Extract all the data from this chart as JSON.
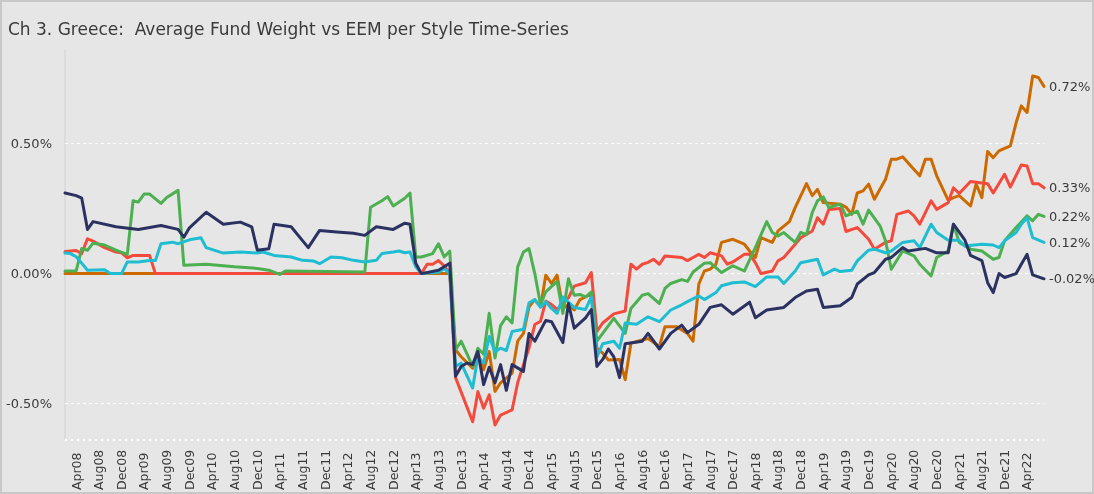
{
  "chart_data": {
    "type": "line",
    "title": "Ch 3. Greece:  Average Fund Weight vs EEM per Style Time-Series",
    "xlim": [
      "2008-02",
      "2022-07"
    ],
    "xticks": [
      {
        "value": "2008-04",
        "label": "Apr08"
      },
      {
        "value": "2008-08",
        "label": "Aug08"
      },
      {
        "value": "2008-12",
        "label": "Dec08"
      },
      {
        "value": "2009-04",
        "label": "Apr09"
      },
      {
        "value": "2009-08",
        "label": "Aug09"
      },
      {
        "value": "2009-12",
        "label": "Dec09"
      },
      {
        "value": "2010-04",
        "label": "Apr10"
      },
      {
        "value": "2010-08",
        "label": "Aug10"
      },
      {
        "value": "2010-12",
        "label": "Dec10"
      },
      {
        "value": "2011-04",
        "label": "Apr11"
      },
      {
        "value": "2011-08",
        "label": "Aug11"
      },
      {
        "value": "2011-12",
        "label": "Dec11"
      },
      {
        "value": "2012-04",
        "label": "Apr12"
      },
      {
        "value": "2012-08",
        "label": "Aug12"
      },
      {
        "value": "2012-12",
        "label": "Dec12"
      },
      {
        "value": "2013-04",
        "label": "Apr13"
      },
      {
        "value": "2013-08",
        "label": "Aug13"
      },
      {
        "value": "2013-12",
        "label": "Dec13"
      },
      {
        "value": "2014-04",
        "label": "Apr14"
      },
      {
        "value": "2014-08",
        "label": "Aug14"
      },
      {
        "value": "2014-12",
        "label": "Dec14"
      },
      {
        "value": "2015-04",
        "label": "Apr15"
      },
      {
        "value": "2015-08",
        "label": "Aug15"
      },
      {
        "value": "2015-12",
        "label": "Dec15"
      },
      {
        "value": "2016-04",
        "label": "Apr16"
      },
      {
        "value": "2016-08",
        "label": "Aug16"
      },
      {
        "value": "2016-12",
        "label": "Dec16"
      },
      {
        "value": "2017-04",
        "label": "Apr17"
      },
      {
        "value": "2017-08",
        "label": "Aug17"
      },
      {
        "value": "2017-12",
        "label": "Dec17"
      },
      {
        "value": "2018-04",
        "label": "Apr18"
      },
      {
        "value": "2018-08",
        "label": "Aug18"
      },
      {
        "value": "2018-12",
        "label": "Dec18"
      },
      {
        "value": "2019-04",
        "label": "Apr19"
      },
      {
        "value": "2019-08",
        "label": "Aug19"
      },
      {
        "value": "2019-12",
        "label": "Dec19"
      },
      {
        "value": "2020-04",
        "label": "Apr20"
      },
      {
        "value": "2020-08",
        "label": "Aug20"
      },
      {
        "value": "2020-12",
        "label": "Dec20"
      },
      {
        "value": "2021-04",
        "label": "Apr21"
      },
      {
        "value": "2021-08",
        "label": "Aug21"
      },
      {
        "value": "2021-12",
        "label": "Dec21"
      },
      {
        "value": "2022-04",
        "label": "Apr22"
      }
    ],
    "ylim": [
      -0.64,
      0.86
    ],
    "yticks": [
      {
        "value": -0.5,
        "label": "-0.50%"
      },
      {
        "value": 0,
        "label": "0.00%"
      },
      {
        "value": 0.5,
        "label": "0.50%"
      }
    ],
    "grid": "y",
    "series": [
      {
        "color": "#cc6a00",
        "x": [
          "2008-02",
          "2013-10",
          "2013-11",
          "2013-12",
          "2014-02",
          "2014-03",
          "2014-04",
          "2014-05",
          "2014-06",
          "2014-07",
          "2014-09",
          "2014-10",
          "2014-11",
          "2014-12",
          "2015-01",
          "2015-02",
          "2015-03",
          "2015-04",
          "2015-05",
          "2015-06",
          "2015-07",
          "2015-08",
          "2015-09",
          "2015-10",
          "2015-11",
          "2015-12",
          "2016-01",
          "2016-02",
          "2016-04",
          "2016-05",
          "2016-06",
          "2016-08",
          "2016-09",
          "2016-11",
          "2016-12",
          "2017-02",
          "2017-04",
          "2017-05",
          "2017-06",
          "2017-07",
          "2017-08",
          "2017-09",
          "2017-10",
          "2017-12",
          "2018-02",
          "2018-03",
          "2018-04",
          "2018-05",
          "2018-07",
          "2018-08",
          "2018-10",
          "2018-11",
          "2019-01",
          "2019-02",
          "2019-03",
          "2019-04",
          "2019-07",
          "2019-08",
          "2019-09",
          "2019-10",
          "2019-11",
          "2019-12",
          "2020-01",
          "2020-03",
          "2020-04",
          "2020-05",
          "2020-06",
          "2020-08",
          "2020-09",
          "2020-10",
          "2020-11",
          "2020-12",
          "2021-02",
          "2021-03",
          "2021-04",
          "2021-06",
          "2021-07",
          "2021-08",
          "2021-09",
          "2021-10",
          "2021-11",
          "2022-01",
          "2022-02",
          "2022-03",
          "2022-04",
          "2022-05",
          "2022-06",
          "2022-07"
        ],
        "values": [
          0.0,
          0.0,
          -0.293,
          -0.32,
          -0.364,
          -0.306,
          -0.37,
          -0.3,
          -0.453,
          -0.42,
          -0.383,
          -0.26,
          -0.23,
          -0.128,
          -0.1,
          -0.128,
          -0.006,
          -0.038,
          -0.006,
          -0.134,
          -0.12,
          -0.14,
          -0.1,
          -0.09,
          -0.077,
          -0.287,
          -0.306,
          -0.332,
          -0.33,
          -0.408,
          -0.268,
          -0.255,
          -0.25,
          -0.28,
          -0.204,
          -0.204,
          -0.23,
          -0.26,
          -0.04,
          0.01,
          0.017,
          0.036,
          0.12,
          0.132,
          0.113,
          0.087,
          0.062,
          0.138,
          0.12,
          0.164,
          0.2,
          0.254,
          0.346,
          0.3,
          0.324,
          0.273,
          0.267,
          0.256,
          0.228,
          0.31,
          0.318,
          0.344,
          0.286,
          0.363,
          0.44,
          0.44,
          0.449,
          0.4,
          0.376,
          0.44,
          0.44,
          0.376,
          0.282,
          0.292,
          0.3,
          0.26,
          0.344,
          0.292,
          0.47,
          0.446,
          0.472,
          0.491,
          0.58,
          0.645,
          0.62,
          0.76,
          0.754,
          0.72
        ]
      },
      {
        "color": "#f44a3c",
        "x": [
          "2008-02",
          "2008-04",
          "2008-05",
          "2008-06",
          "2008-07",
          "2008-09",
          "2008-11",
          "2008-12",
          "2009-01",
          "2009-02",
          "2009-05",
          "2009-06",
          "2013-05",
          "2013-06",
          "2013-07",
          "2013-08",
          "2013-09",
          "2013-10",
          "2013-11",
          "2014-02",
          "2014-03",
          "2014-04",
          "2014-05",
          "2014-06",
          "2014-07",
          "2014-09",
          "2014-10",
          "2014-11",
          "2014-12",
          "2015-01",
          "2015-02",
          "2015-03",
          "2015-04",
          "2015-05",
          "2015-07",
          "2015-08",
          "2015-10",
          "2015-11",
          "2015-12",
          "2016-01",
          "2016-03",
          "2016-05",
          "2016-06",
          "2016-07",
          "2016-08",
          "2016-09",
          "2016-10",
          "2016-11",
          "2016-12",
          "2017-03",
          "2017-04",
          "2017-05",
          "2017-06",
          "2017-07",
          "2017-08",
          "2017-10",
          "2017-11",
          "2017-12",
          "2018-02",
          "2018-03",
          "2018-04",
          "2018-05",
          "2018-07",
          "2018-08",
          "2018-09",
          "2018-11",
          "2018-12",
          "2019-02",
          "2019-03",
          "2019-04",
          "2019-05",
          "2019-07",
          "2019-08",
          "2019-10",
          "2019-12",
          "2020-01",
          "2020-03",
          "2020-04",
          "2020-05",
          "2020-07",
          "2020-08",
          "2020-09",
          "2020-11",
          "2020-12",
          "2021-02",
          "2021-03",
          "2021-04",
          "2021-06",
          "2021-09",
          "2021-10",
          "2021-12",
          "2022-01",
          "2022-03",
          "2022-04",
          "2022-05",
          "2022-06",
          "2022-07"
        ],
        "values": [
          0.085,
          0.089,
          0.077,
          0.134,
          0.125,
          0.1,
          0.083,
          0.08,
          0.061,
          0.07,
          0.07,
          0.0,
          0.0,
          0.036,
          0.036,
          0.05,
          0.03,
          0.0,
          -0.4,
          -0.57,
          -0.454,
          -0.518,
          -0.466,
          -0.582,
          -0.544,
          -0.524,
          -0.42,
          -0.35,
          -0.286,
          -0.196,
          -0.183,
          -0.106,
          -0.119,
          -0.138,
          -0.093,
          -0.048,
          -0.035,
          0.004,
          -0.222,
          -0.19,
          -0.155,
          -0.144,
          0.036,
          0.017,
          0.036,
          0.043,
          0.055,
          0.036,
          0.068,
          0.062,
          0.05,
          0.062,
          0.074,
          0.062,
          0.08,
          0.068,
          0.036,
          0.045,
          0.074,
          0.074,
          0.042,
          0.0,
          0.01,
          0.049,
          0.062,
          0.113,
          0.138,
          0.164,
          0.215,
          0.19,
          0.247,
          0.25,
          0.162,
          0.177,
          0.132,
          0.094,
          0.12,
          0.126,
          0.228,
          0.241,
          0.222,
          0.19,
          0.28,
          0.247,
          0.273,
          0.33,
          0.308,
          0.354,
          0.346,
          0.31,
          0.382,
          0.333,
          0.418,
          0.414,
          0.346,
          0.346,
          0.33
        ]
      },
      {
        "color": "#4caf50",
        "x": [
          "2008-02",
          "2008-04",
          "2008-05",
          "2008-06",
          "2008-07",
          "2008-09",
          "2008-11",
          "2009-01",
          "2009-02",
          "2009-03",
          "2009-04",
          "2009-05",
          "2009-07",
          "2009-08",
          "2009-10",
          "2009-11",
          "2010-03",
          "2010-08",
          "2010-12",
          "2011-02",
          "2011-04",
          "2011-05",
          "2012-07",
          "2012-08",
          "2012-10",
          "2012-11",
          "2012-12",
          "2013-02",
          "2013-03",
          "2013-04",
          "2013-05",
          "2013-07",
          "2013-08",
          "2013-09",
          "2013-10",
          "2013-11",
          "2013-12",
          "2014-02",
          "2014-03",
          "2014-04",
          "2014-05",
          "2014-06",
          "2014-07",
          "2014-08",
          "2014-09",
          "2014-10",
          "2014-11",
          "2014-12",
          "2015-01",
          "2015-02",
          "2015-03",
          "2015-05",
          "2015-06",
          "2015-07",
          "2015-08",
          "2015-09",
          "2015-10",
          "2015-11",
          "2015-12",
          "2016-01",
          "2016-03",
          "2016-05",
          "2016-06",
          "2016-08",
          "2016-09",
          "2016-11",
          "2016-12",
          "2017-01",
          "2017-03",
          "2017-04",
          "2017-05",
          "2017-07",
          "2017-08",
          "2017-10",
          "2017-12",
          "2018-02",
          "2018-04",
          "2018-06",
          "2018-07",
          "2018-08",
          "2018-09",
          "2018-11",
          "2018-12",
          "2019-01",
          "2019-02",
          "2019-03",
          "2019-04",
          "2019-05",
          "2019-07",
          "2019-08",
          "2019-10",
          "2019-11",
          "2019-12",
          "2020-02",
          "2020-03",
          "2020-04",
          "2020-06",
          "2020-08",
          "2020-09",
          "2020-11",
          "2020-12",
          "2021-02",
          "2021-03",
          "2021-04",
          "2021-06",
          "2021-08",
          "2021-10",
          "2021-11",
          "2021-12",
          "2022-02",
          "2022-04",
          "2022-05",
          "2022-06",
          "2022-07"
        ],
        "values": [
          0.01,
          0.01,
          0.096,
          0.09,
          0.117,
          0.11,
          0.09,
          0.074,
          0.28,
          0.275,
          0.306,
          0.306,
          0.27,
          0.293,
          0.32,
          0.032,
          0.036,
          0.026,
          0.02,
          0.013,
          -0.003,
          0.01,
          0.006,
          0.255,
          0.28,
          0.296,
          0.26,
          0.29,
          0.31,
          0.064,
          0.064,
          0.077,
          0.115,
          0.064,
          0.087,
          -0.293,
          -0.26,
          -0.357,
          -0.287,
          -0.31,
          -0.153,
          -0.325,
          -0.2,
          -0.166,
          -0.19,
          0.026,
          0.083,
          0.096,
          0.0,
          -0.12,
          -0.07,
          -0.03,
          -0.153,
          -0.02,
          -0.083,
          -0.08,
          -0.09,
          -0.07,
          -0.26,
          -0.23,
          -0.172,
          -0.23,
          -0.134,
          -0.083,
          -0.077,
          -0.115,
          -0.057,
          -0.038,
          -0.023,
          -0.03,
          0.006,
          0.04,
          0.042,
          0.004,
          0.03,
          0.01,
          0.1,
          0.2,
          0.158,
          0.145,
          0.158,
          0.12,
          0.158,
          0.15,
          0.235,
          0.28,
          0.295,
          0.254,
          0.267,
          0.222,
          0.24,
          0.19,
          0.244,
          0.183,
          0.126,
          0.017,
          0.087,
          0.068,
          0.036,
          -0.009,
          0.062,
          0.087,
          0.19,
          0.12,
          0.094,
          0.087,
          0.055,
          0.062,
          0.126,
          0.177,
          0.222,
          0.203,
          0.228,
          0.22
        ]
      },
      {
        "color": "#1fbdd2",
        "x": [
          "2008-02",
          "2008-03",
          "2008-04",
          "2008-05",
          "2008-06",
          "2008-09",
          "2008-10",
          "2008-12",
          "2009-01",
          "2009-03",
          "2009-05",
          "2009-06",
          "2009-07",
          "2009-09",
          "2009-10",
          "2009-12",
          "2010-02",
          "2010-03",
          "2010-06",
          "2010-09",
          "2010-12",
          "2011-01",
          "2011-03",
          "2011-06",
          "2011-08",
          "2011-10",
          "2011-11",
          "2012-01",
          "2012-03",
          "2012-05",
          "2012-07",
          "2012-09",
          "2012-10",
          "2012-12",
          "2013-01",
          "2013-02",
          "2013-03",
          "2013-04",
          "2013-05",
          "2013-08",
          "2013-09",
          "2013-10",
          "2013-11",
          "2013-12",
          "2014-02",
          "2014-03",
          "2014-04",
          "2014-05",
          "2014-06",
          "2014-07",
          "2014-08",
          "2014-09",
          "2014-11",
          "2014-12",
          "2015-01",
          "2015-02",
          "2015-03",
          "2015-04",
          "2015-05",
          "2015-06",
          "2015-08",
          "2015-10",
          "2015-11",
          "2015-12",
          "2016-01",
          "2016-03",
          "2016-04",
          "2016-05",
          "2016-07",
          "2016-09",
          "2016-11",
          "2017-01",
          "2017-03",
          "2017-04",
          "2017-06",
          "2017-07",
          "2017-09",
          "2017-10",
          "2017-12",
          "2018-02",
          "2018-04",
          "2018-06",
          "2018-08",
          "2018-09",
          "2018-11",
          "2018-12",
          "2019-03",
          "2019-04",
          "2019-06",
          "2019-07",
          "2019-09",
          "2019-10",
          "2019-12",
          "2020-01",
          "2020-03",
          "2020-04",
          "2020-06",
          "2020-08",
          "2020-09",
          "2020-11",
          "2020-12",
          "2021-02",
          "2021-04",
          "2021-05",
          "2021-08",
          "2021-10",
          "2021-11",
          "2021-12",
          "2022-02",
          "2022-03",
          "2022-04",
          "2022-05",
          "2022-07"
        ],
        "values": [
          0.079,
          0.077,
          0.065,
          0.04,
          0.013,
          0.015,
          0.0,
          0.0,
          0.045,
          0.045,
          0.05,
          0.05,
          0.115,
          0.121,
          0.115,
          0.13,
          0.138,
          0.1,
          0.079,
          0.083,
          0.079,
          0.083,
          0.07,
          0.064,
          0.051,
          0.048,
          0.038,
          0.064,
          0.061,
          0.051,
          0.045,
          0.051,
          0.077,
          0.083,
          0.087,
          0.08,
          0.083,
          0.026,
          0.0,
          0.005,
          0.019,
          0.0,
          -0.357,
          -0.344,
          -0.44,
          -0.32,
          -0.344,
          -0.242,
          -0.3,
          -0.287,
          -0.296,
          -0.223,
          -0.214,
          -0.112,
          -0.1,
          -0.13,
          -0.108,
          -0.134,
          -0.153,
          -0.09,
          -0.13,
          -0.138,
          -0.09,
          -0.32,
          -0.27,
          -0.26,
          -0.287,
          -0.19,
          -0.195,
          -0.166,
          -0.185,
          -0.14,
          -0.12,
          -0.108,
          -0.086,
          -0.1,
          -0.073,
          -0.047,
          -0.035,
          -0.032,
          -0.05,
          -0.013,
          -0.013,
          -0.038,
          0.01,
          0.042,
          0.055,
          -0.005,
          0.017,
          0.008,
          0.013,
          0.049,
          0.09,
          0.094,
          0.08,
          0.087,
          0.12,
          0.126,
          0.1,
          0.19,
          0.158,
          0.128,
          0.128,
          0.106,
          0.113,
          0.11,
          0.1,
          0.126,
          0.158,
          0.19,
          0.215,
          0.138,
          0.12
        ]
      },
      {
        "color": "#2b3160",
        "x": [
          "2008-02",
          "2008-04",
          "2008-05",
          "2008-06",
          "2008-07",
          "2008-11",
          "2009-03",
          "2009-07",
          "2009-10",
          "2009-11",
          "2009-12",
          "2010-03",
          "2010-06",
          "2010-09",
          "2010-11",
          "2010-12",
          "2011-02",
          "2011-03",
          "2011-06",
          "2011-09",
          "2011-11",
          "2012-02",
          "2012-05",
          "2012-07",
          "2012-09",
          "2012-12",
          "2013-02",
          "2013-03",
          "2013-04",
          "2013-05",
          "2013-08",
          "2013-10",
          "2013-11",
          "2013-12",
          "2014-01",
          "2014-02",
          "2014-03",
          "2014-04",
          "2014-05",
          "2014-06",
          "2014-07",
          "2014-08",
          "2014-09",
          "2014-11",
          "2014-12",
          "2015-01",
          "2015-03",
          "2015-04",
          "2015-06",
          "2015-07",
          "2015-08",
          "2015-10",
          "2015-11",
          "2015-12",
          "2016-01",
          "2016-02",
          "2016-03",
          "2016-04",
          "2016-05",
          "2016-08",
          "2016-09",
          "2016-11",
          "2017-01",
          "2017-03",
          "2017-04",
          "2017-06",
          "2017-08",
          "2017-10",
          "2017-12",
          "2018-03",
          "2018-04",
          "2018-06",
          "2018-09",
          "2018-11",
          "2019-01",
          "2019-03",
          "2019-04",
          "2019-07",
          "2019-09",
          "2019-10",
          "2019-12",
          "2020-01",
          "2020-03",
          "2020-04",
          "2020-06",
          "2020-07",
          "2020-10",
          "2020-12",
          "2021-02",
          "2021-03",
          "2021-05",
          "2021-06",
          "2021-08",
          "2021-09",
          "2021-10",
          "2021-11",
          "2021-12",
          "2022-02",
          "2022-03",
          "2022-04",
          "2022-05",
          "2022-07"
        ],
        "values": [
          0.31,
          0.3,
          0.29,
          0.17,
          0.2,
          0.18,
          0.17,
          0.185,
          0.17,
          0.14,
          0.176,
          0.236,
          0.19,
          0.198,
          0.18,
          0.09,
          0.096,
          0.19,
          0.18,
          0.1,
          0.166,
          0.16,
          0.155,
          0.147,
          0.18,
          0.17,
          0.194,
          0.19,
          0.04,
          0.0,
          0.013,
          0.04,
          -0.395,
          -0.357,
          -0.344,
          -0.35,
          -0.3,
          -0.427,
          -0.36,
          -0.42,
          -0.35,
          -0.449,
          -0.35,
          -0.376,
          -0.23,
          -0.26,
          -0.18,
          -0.185,
          -0.265,
          -0.115,
          -0.21,
          -0.17,
          -0.138,
          -0.357,
          -0.33,
          -0.29,
          -0.32,
          -0.4,
          -0.27,
          -0.26,
          -0.23,
          -0.29,
          -0.23,
          -0.198,
          -0.227,
          -0.195,
          -0.13,
          -0.12,
          -0.156,
          -0.11,
          -0.17,
          -0.14,
          -0.13,
          -0.092,
          -0.067,
          -0.06,
          -0.13,
          -0.124,
          -0.092,
          -0.04,
          -0.005,
          0.004,
          0.055,
          0.062,
          0.1,
          0.087,
          0.097,
          0.08,
          0.08,
          0.19,
          0.13,
          0.07,
          0.05,
          -0.035,
          -0.073,
          0.0,
          -0.015,
          0.0,
          0.036,
          0.074,
          -0.005,
          -0.02
        ]
      }
    ],
    "annotations": [
      {
        "text": "0.72%",
        "x": "2022-07",
        "y": 0.72
      },
      {
        "text": "0.33%",
        "x": "2022-07",
        "y": 0.33
      },
      {
        "text": "0.22%",
        "x": "2022-07",
        "y": 0.22
      },
      {
        "text": "0.12%",
        "x": "2022-07",
        "y": 0.12
      },
      {
        "text": "-0.02%",
        "x": "2022-07",
        "y": -0.02
      }
    ]
  }
}
